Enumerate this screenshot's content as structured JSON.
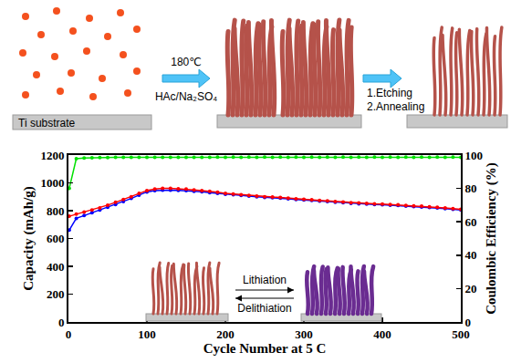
{
  "schematic": {
    "substrate_label": "Ti substrate",
    "step1": {
      "above": "180℃",
      "below": "HAc/Na₂SO₄"
    },
    "step2": [
      "1.Etching",
      "2.Annealing"
    ],
    "inset": {
      "above": "Lithiation",
      "below": "Delithiation"
    }
  },
  "chart_data": {
    "type": "line",
    "x_label": "Cycle Number at 5 C",
    "y_label": "Capacity (mAh/g)",
    "y2_label": "Coulombic Efficiency (%)",
    "x": [
      1,
      10,
      20,
      30,
      40,
      50,
      60,
      70,
      80,
      90,
      100,
      110,
      120,
      130,
      140,
      150,
      160,
      170,
      180,
      190,
      200,
      210,
      220,
      230,
      240,
      250,
      260,
      270,
      280,
      290,
      300,
      310,
      320,
      330,
      340,
      350,
      360,
      370,
      380,
      390,
      400,
      410,
      420,
      430,
      440,
      450,
      460,
      470,
      480,
      490,
      500
    ],
    "series": [
      {
        "color": "#0000ff",
        "marker": "circle",
        "values": [
          660,
          745,
          765,
          785,
          805,
          825,
          845,
          865,
          888,
          912,
          935,
          945,
          948,
          948,
          946,
          944,
          940,
          936,
          930,
          924,
          918,
          915,
          910,
          905,
          900,
          895,
          893,
          890,
          885,
          881,
          877,
          873,
          869,
          865,
          861,
          857,
          853,
          850,
          847,
          845,
          843,
          840,
          837,
          833,
          830,
          827,
          823,
          819,
          815,
          810,
          805
        ]
      },
      {
        "color": "#ff0000",
        "marker": "circle",
        "values": [
          760,
          775,
          790,
          805,
          820,
          840,
          860,
          880,
          900,
          925,
          945,
          955,
          960,
          960,
          958,
          955,
          950,
          945,
          940,
          932,
          925,
          920,
          915,
          910,
          905,
          900,
          898,
          895,
          890,
          886,
          882,
          878,
          874,
          870,
          866,
          862,
          858,
          855,
          852,
          850,
          848,
          845,
          842,
          838,
          835,
          832,
          828,
          824,
          820,
          815,
          810
        ]
      },
      {
        "color": "#00e000",
        "marker": "circle",
        "axis": "y2",
        "values": [
          80,
          97.8,
          98.2,
          98.4,
          98.5,
          98.5,
          98.6,
          98.6,
          98.6,
          98.7,
          98.6,
          98.7,
          98.7,
          98.7,
          98.6,
          98.7,
          98.7,
          98.7,
          98.7,
          98.8,
          98.7,
          98.8,
          98.7,
          98.8,
          98.7,
          98.8,
          98.7,
          98.8,
          98.7,
          98.8,
          98.7,
          98.8,
          98.7,
          98.8,
          98.7,
          98.8,
          98.7,
          98.8,
          98.7,
          98.8,
          98.7,
          98.8,
          98.7,
          98.8,
          98.7,
          98.8,
          98.7,
          98.8,
          98.7,
          98.8,
          98.7
        ]
      }
    ],
    "xlim": [
      0,
      500
    ],
    "xticks": [
      0,
      100,
      200,
      300,
      400,
      500
    ],
    "ylim": [
      0,
      1200
    ],
    "yticks": [
      0,
      200,
      400,
      600,
      800,
      1000,
      1200
    ],
    "y2lim": [
      0,
      100
    ],
    "y2ticks": [
      0,
      20,
      40,
      60,
      80,
      100
    ],
    "grid": false
  }
}
